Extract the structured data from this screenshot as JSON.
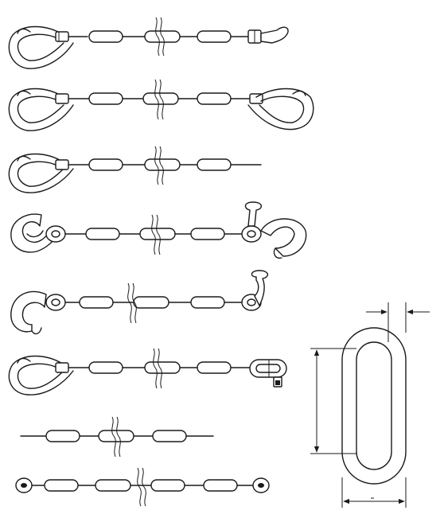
{
  "figure": {
    "rows": [
      {
        "id": "row-1",
        "left_end": "grab-hook",
        "right_end": "clevis-with-binder-handle",
        "break_mark": true
      },
      {
        "id": "row-2",
        "left_end": "grab-hook",
        "right_end": "grab-hook",
        "break_mark": true
      },
      {
        "id": "row-3",
        "left_end": "grab-hook",
        "right_end": "plain-rod",
        "break_mark": true
      },
      {
        "id": "row-4",
        "left_end": "slip-hook",
        "right_end": "swivel-and-slip-hook",
        "break_mark": true
      },
      {
        "id": "row-5",
        "left_end": "slip-hook",
        "right_end": "swivel-eye-hook",
        "break_mark": true
      },
      {
        "id": "row-6",
        "left_end": "grab-hook",
        "right_end": "clevis-shackle",
        "break_mark": true
      },
      {
        "id": "row-7",
        "left_end": "plain-rod",
        "right_end": "plain-rod",
        "break_mark": true
      },
      {
        "id": "row-8",
        "left_end": "end-link",
        "right_end": "end-link",
        "break_mark": true
      }
    ],
    "detail": {
      "name": "single-link-dimensions",
      "dimension_lines": [
        "pitch",
        "outer-width",
        "wire-diameter"
      ]
    }
  }
}
